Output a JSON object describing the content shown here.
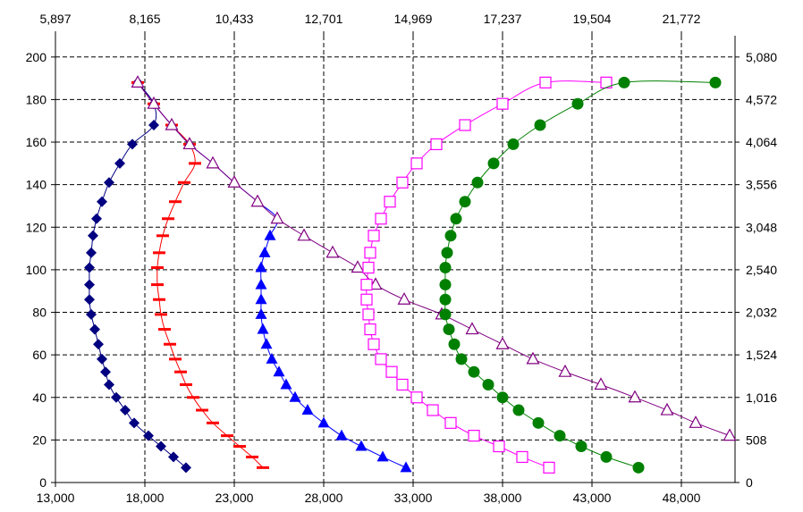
{
  "chart_data": {
    "type": "scatter",
    "title": "",
    "xlabel": "",
    "ylabel": "",
    "legend": "none",
    "grid": true,
    "x_bottom": {
      "range": [
        13000,
        51000
      ],
      "ticks": [
        13000,
        18000,
        23000,
        28000,
        33000,
        38000,
        43000,
        48000
      ],
      "tick_labels": [
        "13,000",
        "18,000",
        "23,000",
        "28,000",
        "33,000",
        "38,000",
        "43,000",
        "48,000"
      ]
    },
    "x_top": {
      "tick_labels": [
        "5,897",
        "8,165",
        "10,433",
        "12,701",
        "14,969",
        "17,237",
        "19,504",
        "21,772"
      ]
    },
    "y_left": {
      "range": [
        0,
        210
      ],
      "ticks": [
        0,
        20,
        40,
        60,
        80,
        100,
        120,
        140,
        160,
        180,
        200
      ],
      "tick_labels": [
        "0",
        "20",
        "40",
        "60",
        "80",
        "100",
        "120",
        "140",
        "160",
        "180",
        "200"
      ]
    },
    "y_right": {
      "tick_labels": [
        "0",
        "508",
        "1,016",
        "1,524",
        "2,032",
        "2,540",
        "3,048",
        "3,556",
        "4,064",
        "4,572",
        "5,080"
      ]
    },
    "series": [
      {
        "marker": "diamond",
        "color": "#000080",
        "points": [
          [
            20300,
            7
          ],
          [
            19600,
            12
          ],
          [
            18900,
            17
          ],
          [
            18200,
            22
          ],
          [
            17400,
            28
          ],
          [
            16900,
            34
          ],
          [
            16400,
            40
          ],
          [
            16000,
            46
          ],
          [
            15800,
            52
          ],
          [
            15600,
            58
          ],
          [
            15400,
            65
          ],
          [
            15200,
            72
          ],
          [
            15000,
            79
          ],
          [
            14900,
            86
          ],
          [
            14900,
            93
          ],
          [
            14900,
            101
          ],
          [
            15000,
            108
          ],
          [
            15100,
            116
          ],
          [
            15300,
            124
          ],
          [
            15600,
            132
          ],
          [
            16000,
            141
          ],
          [
            16600,
            150
          ],
          [
            17300,
            159
          ],
          [
            18500,
            168
          ],
          [
            18500,
            178
          ],
          [
            17600,
            188
          ]
        ]
      },
      {
        "marker": "dash",
        "color": "#ff0000",
        "points": [
          [
            24600,
            7
          ],
          [
            24000,
            12
          ],
          [
            23300,
            17
          ],
          [
            22600,
            22
          ],
          [
            21800,
            28
          ],
          [
            21200,
            34
          ],
          [
            20700,
            40
          ],
          [
            20300,
            46
          ],
          [
            20000,
            52
          ],
          [
            19700,
            58
          ],
          [
            19400,
            65
          ],
          [
            19100,
            72
          ],
          [
            18900,
            79
          ],
          [
            18800,
            86
          ],
          [
            18700,
            93
          ],
          [
            18700,
            101
          ],
          [
            18800,
            108
          ],
          [
            19000,
            116
          ],
          [
            19300,
            124
          ],
          [
            19700,
            132
          ],
          [
            20200,
            141
          ],
          [
            20800,
            150
          ],
          [
            20500,
            159
          ],
          [
            19500,
            168
          ],
          [
            18500,
            178
          ],
          [
            17600,
            188
          ]
        ]
      },
      {
        "marker": "triangle",
        "color": "#0000ff",
        "points": [
          [
            32600,
            7
          ],
          [
            31300,
            12
          ],
          [
            30100,
            17
          ],
          [
            29000,
            22
          ],
          [
            28000,
            28
          ],
          [
            27100,
            34
          ],
          [
            26400,
            40
          ],
          [
            25900,
            46
          ],
          [
            25500,
            52
          ],
          [
            25100,
            58
          ],
          [
            24800,
            65
          ],
          [
            24600,
            72
          ],
          [
            24500,
            79
          ],
          [
            24500,
            86
          ],
          [
            24500,
            93
          ],
          [
            24500,
            101
          ],
          [
            24700,
            108
          ],
          [
            25000,
            116
          ],
          [
            25400,
            124
          ],
          [
            24300,
            132
          ],
          [
            23000,
            141
          ],
          [
            21800,
            150
          ],
          [
            20500,
            159
          ],
          [
            19500,
            168
          ],
          [
            18500,
            178
          ],
          [
            17600,
            188
          ]
        ]
      },
      {
        "marker": "open-triangle",
        "color": "#800080",
        "points": [
          [
            50700,
            22
          ],
          [
            48800,
            28
          ],
          [
            47200,
            34
          ],
          [
            45400,
            40
          ],
          [
            43500,
            46
          ],
          [
            41500,
            52
          ],
          [
            39700,
            58
          ],
          [
            38000,
            65
          ],
          [
            36300,
            72
          ],
          [
            34600,
            79
          ],
          [
            32500,
            86
          ],
          [
            30900,
            93
          ],
          [
            29900,
            101
          ],
          [
            28500,
            108
          ],
          [
            26900,
            116
          ],
          [
            25400,
            124
          ],
          [
            24300,
            132
          ],
          [
            23000,
            141
          ],
          [
            21800,
            150
          ],
          [
            20500,
            159
          ],
          [
            19500,
            168
          ],
          [
            18500,
            178
          ],
          [
            17600,
            188
          ]
        ]
      },
      {
        "marker": "open-square",
        "color": "#ff00ff",
        "points": [
          [
            40600,
            7
          ],
          [
            39100,
            12
          ],
          [
            37800,
            17
          ],
          [
            36400,
            22
          ],
          [
            35100,
            28
          ],
          [
            34100,
            34
          ],
          [
            33200,
            40
          ],
          [
            32400,
            46
          ],
          [
            31800,
            52
          ],
          [
            31200,
            58
          ],
          [
            30800,
            65
          ],
          [
            30600,
            72
          ],
          [
            30500,
            79
          ],
          [
            30400,
            86
          ],
          [
            30400,
            93
          ],
          [
            30500,
            101
          ],
          [
            30600,
            108
          ],
          [
            30800,
            116
          ],
          [
            31200,
            124
          ],
          [
            31700,
            132
          ],
          [
            32400,
            141
          ],
          [
            33200,
            150
          ],
          [
            34300,
            159
          ],
          [
            35900,
            168
          ],
          [
            38000,
            178
          ],
          [
            40400,
            188
          ],
          [
            43800,
            188
          ]
        ]
      },
      {
        "marker": "circle",
        "color": "#008000",
        "points": [
          [
            45600,
            7
          ],
          [
            43800,
            12
          ],
          [
            42400,
            17
          ],
          [
            41200,
            22
          ],
          [
            40000,
            28
          ],
          [
            38900,
            34
          ],
          [
            38000,
            40
          ],
          [
            37200,
            46
          ],
          [
            36400,
            52
          ],
          [
            35700,
            58
          ],
          [
            35300,
            65
          ],
          [
            35000,
            72
          ],
          [
            34800,
            79
          ],
          [
            34800,
            86
          ],
          [
            34800,
            93
          ],
          [
            34800,
            101
          ],
          [
            34900,
            108
          ],
          [
            35100,
            116
          ],
          [
            35400,
            124
          ],
          [
            35900,
            132
          ],
          [
            36600,
            141
          ],
          [
            37500,
            150
          ],
          [
            38600,
            159
          ],
          [
            40100,
            168
          ],
          [
            42200,
            178
          ],
          [
            44800,
            188
          ],
          [
            49900,
            188
          ]
        ]
      }
    ]
  }
}
